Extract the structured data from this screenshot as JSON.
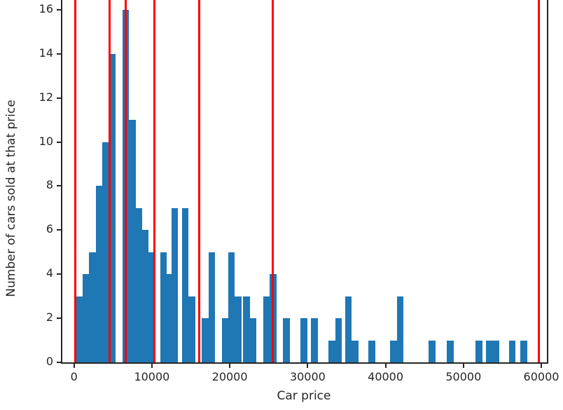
{
  "chart_data": {
    "type": "bar",
    "subtype": "histogram",
    "title": "",
    "xlabel": "Car price",
    "ylabel": "Number of cars sold at that price",
    "x_ticks": [
      0,
      10000,
      20000,
      30000,
      40000,
      50000,
      60000
    ],
    "y_ticks": [
      0,
      2,
      4,
      6,
      8,
      10,
      12,
      14,
      16
    ],
    "xlim": [
      -1700,
      60800
    ],
    "ylim": [
      0,
      16.45
    ],
    "grid": false,
    "legend": null,
    "bar_color": "#1f77b4",
    "vline_color": "#ff0000",
    "axis_color": "#262626",
    "bin_width": 850,
    "bars": [
      {
        "x": 250,
        "h": 3
      },
      {
        "x": 1100,
        "h": 4
      },
      {
        "x": 1950,
        "h": 5
      },
      {
        "x": 2800,
        "h": 8
      },
      {
        "x": 3650,
        "h": 10
      },
      {
        "x": 4500,
        "h": 14
      },
      {
        "x": 6200,
        "h": 16
      },
      {
        "x": 7050,
        "h": 11
      },
      {
        "x": 7900,
        "h": 7
      },
      {
        "x": 8700,
        "h": 6
      },
      {
        "x": 9400,
        "h": 5
      },
      {
        "x": 11050,
        "h": 5
      },
      {
        "x": 11900,
        "h": 4
      },
      {
        "x": 12500,
        "h": 7
      },
      {
        "x": 13850,
        "h": 7
      },
      {
        "x": 14700,
        "h": 3
      },
      {
        "x": 16400,
        "h": 2
      },
      {
        "x": 17250,
        "h": 5
      },
      {
        "x": 18950,
        "h": 2
      },
      {
        "x": 19800,
        "h": 5
      },
      {
        "x": 20650,
        "h": 3
      },
      {
        "x": 21700,
        "h": 3
      },
      {
        "x": 22550,
        "h": 2
      },
      {
        "x": 24300,
        "h": 3
      },
      {
        "x": 25150,
        "h": 4
      },
      {
        "x": 26850,
        "h": 2
      },
      {
        "x": 29100,
        "h": 2
      },
      {
        "x": 30450,
        "h": 2
      },
      {
        "x": 32700,
        "h": 1
      },
      {
        "x": 33550,
        "h": 2
      },
      {
        "x": 34800,
        "h": 3
      },
      {
        "x": 35650,
        "h": 1
      },
      {
        "x": 37800,
        "h": 1
      },
      {
        "x": 40600,
        "h": 1
      },
      {
        "x": 41450,
        "h": 3
      },
      {
        "x": 45550,
        "h": 1
      },
      {
        "x": 47900,
        "h": 1
      },
      {
        "x": 51550,
        "h": 1
      },
      {
        "x": 52900,
        "h": 1
      },
      {
        "x": 53750,
        "h": 1
      },
      {
        "x": 55850,
        "h": 1
      },
      {
        "x": 57300,
        "h": 1
      }
    ],
    "vlines": [
      150,
      4600,
      6650,
      10300,
      16050,
      25500,
      59700
    ]
  }
}
